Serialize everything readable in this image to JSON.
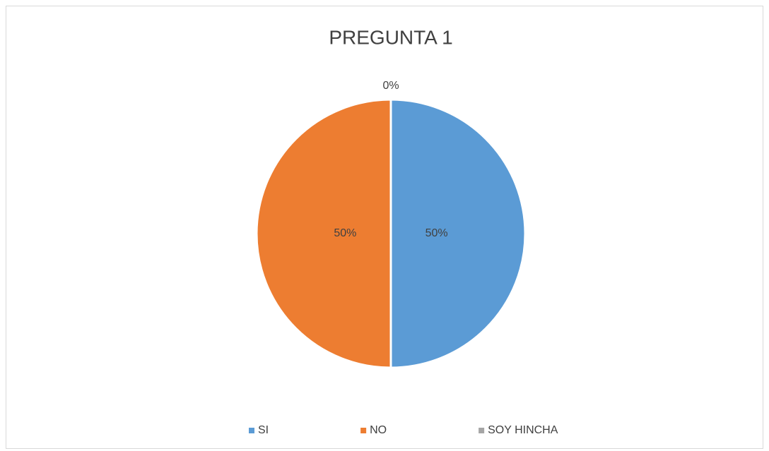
{
  "chart_data": {
    "type": "pie",
    "title": "PREGUNTA 1",
    "categories": [
      "SI",
      "NO",
      "SOY HINCHA"
    ],
    "values": [
      50,
      50,
      0
    ],
    "value_labels": [
      "50%",
      "50%",
      "0%"
    ],
    "colors": [
      "#5b9bd5",
      "#ed7d31",
      "#a5a5a5"
    ],
    "legend": "bottom"
  }
}
